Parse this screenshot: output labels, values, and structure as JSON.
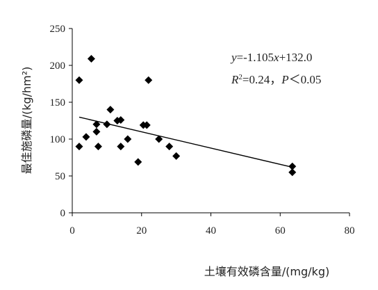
{
  "chart_data": {
    "type": "scatter",
    "xlabel": "土壤有效磷含量/(mg/kg)",
    "ylabel": "最佳施磷量/(kg/hm²)",
    "xlim": [
      0,
      80
    ],
    "ylim": [
      0,
      250
    ],
    "xticks": [
      "0",
      "20",
      "40",
      "60",
      "80"
    ],
    "yticks": [
      "0",
      "50",
      "100",
      "150",
      "200",
      "250"
    ],
    "grid": false,
    "series": [
      {
        "marker": "diamond",
        "color": "#000000",
        "points": [
          {
            "x": 2,
            "y": 180
          },
          {
            "x": 2,
            "y": 90
          },
          {
            "x": 4,
            "y": 103
          },
          {
            "x": 5.5,
            "y": 209
          },
          {
            "x": 7,
            "y": 120
          },
          {
            "x": 7,
            "y": 110
          },
          {
            "x": 7.5,
            "y": 90
          },
          {
            "x": 10,
            "y": 120
          },
          {
            "x": 11,
            "y": 140
          },
          {
            "x": 13,
            "y": 125
          },
          {
            "x": 14,
            "y": 126
          },
          {
            "x": 14,
            "y": 90
          },
          {
            "x": 16,
            "y": 100
          },
          {
            "x": 19,
            "y": 69
          },
          {
            "x": 20.5,
            "y": 119
          },
          {
            "x": 21.5,
            "y": 119
          },
          {
            "x": 22,
            "y": 180
          },
          {
            "x": 25,
            "y": 100
          },
          {
            "x": 28,
            "y": 90
          },
          {
            "x": 30,
            "y": 77
          },
          {
            "x": 63.5,
            "y": 63
          },
          {
            "x": 63.5,
            "y": 55
          }
        ]
      }
    ],
    "trendline": {
      "slope": -1.105,
      "intercept": 132.0,
      "x_range": [
        2,
        63.5
      ]
    },
    "annotations": {
      "equation": {
        "y_var": "y",
        "rhs_a": "=-1.105",
        "x_var": "x",
        "rhs_b": "+132.0"
      },
      "stats": {
        "r": "R",
        "r_sup": "2",
        "r_val": "=0.24，",
        "p": "P",
        "p_val": "＜0.05"
      }
    }
  }
}
